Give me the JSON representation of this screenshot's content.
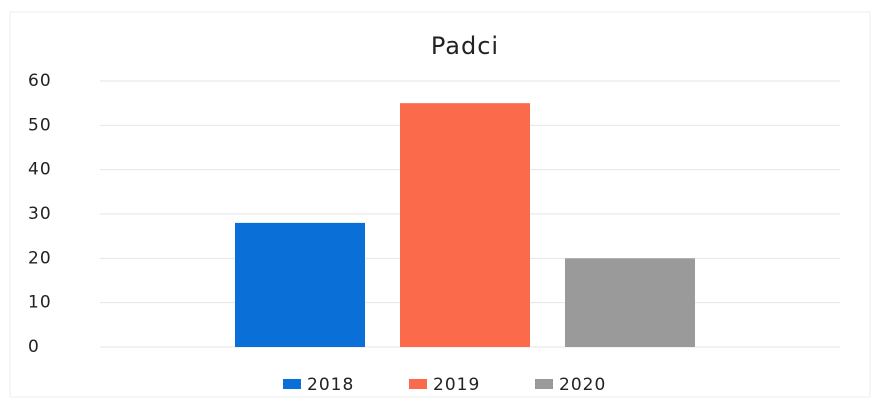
{
  "chart_data": {
    "type": "bar",
    "title": "Padci",
    "categories": [
      null
    ],
    "series": [
      {
        "name": "2018",
        "color": "#0b6fd8",
        "values": [
          28
        ]
      },
      {
        "name": "2019",
        "color": "#fb6b4b",
        "values": [
          55
        ]
      },
      {
        "name": "2020",
        "color": "#9a9a9a",
        "values": [
          20
        ]
      }
    ],
    "ylim": [
      0,
      60
    ],
    "yticks": [
      0,
      10,
      20,
      30,
      40,
      50,
      60
    ],
    "grid": true,
    "legend": "bottom"
  }
}
